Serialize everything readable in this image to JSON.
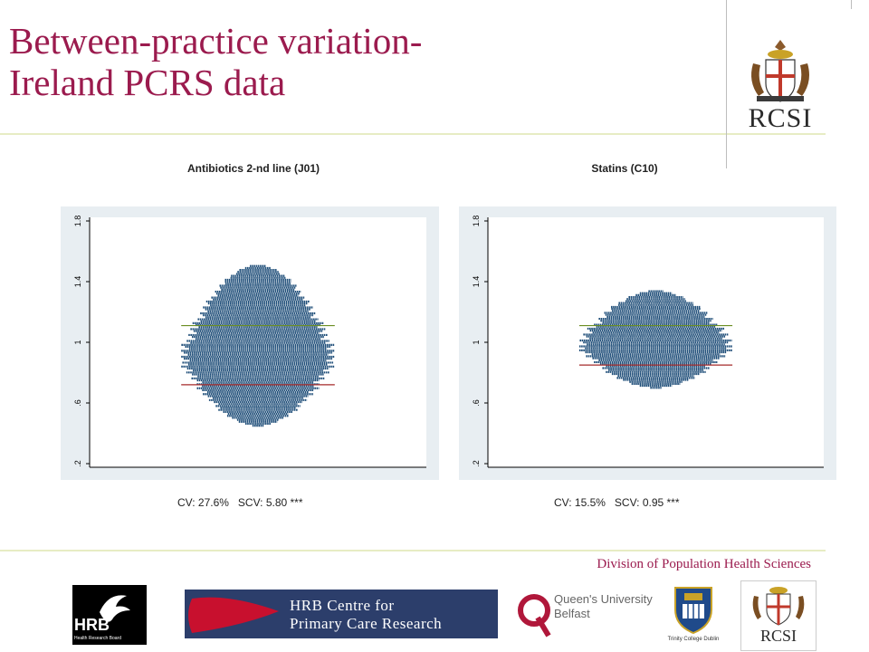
{
  "slide": {
    "title_line1": "Between-practice variation-",
    "title_line2": "Ireland PCRS data",
    "footer_text": "Division of Population Health Sciences",
    "accent_color": "#9b1b4e",
    "line_color": "#e7ecc4"
  },
  "charts": [
    {
      "title": "Antibiotics 2-nd line (J01)",
      "stats": "CV: 27.6%   SCV: 5.80 ***",
      "y_ticks": [
        "1.8",
        "1.4",
        "1",
        ".6",
        ".2"
      ]
    },
    {
      "title": "Statins (C10)",
      "stats": "CV: 15.5%   SCV: 0.95 ***",
      "y_ticks": [
        "1.8",
        "1.4",
        "1",
        ".6",
        ".2"
      ]
    }
  ],
  "chart_data": [
    {
      "type": "scatter",
      "title": "Antibiotics 2-nd line (J01)",
      "ylim": [
        0.2,
        1.8
      ],
      "yticks": [
        0.2,
        0.6,
        1.0,
        1.4,
        1.8
      ],
      "distribution": {
        "min": 0.45,
        "max": 1.51,
        "widest_at": 0.9,
        "half_width_max": 0.95
      },
      "reference_lines": [
        {
          "value": 1.11,
          "color": "#6b8e23"
        },
        {
          "value": 0.72,
          "color": "#a52a2a"
        }
      ],
      "annotation": "CV: 27.6%   SCV: 5.80 ***"
    },
    {
      "type": "scatter",
      "title": "Statins (C10)",
      "ylim": [
        0.2,
        1.8
      ],
      "yticks": [
        0.2,
        0.6,
        1.0,
        1.4,
        1.8
      ],
      "distribution": {
        "min": 0.7,
        "max": 1.34,
        "widest_at": 0.98,
        "half_width_max": 0.95
      },
      "reference_lines": [
        {
          "value": 1.11,
          "color": "#6b8e23"
        },
        {
          "value": 0.85,
          "color": "#a52a2a"
        }
      ],
      "annotation": "CV: 15.5%   SCV: 0.95 ***"
    }
  ],
  "logos": {
    "rcsi_text": "RCSI",
    "hrb_text": "HRB",
    "hrb_sub": "Health Research Board",
    "hrb_centre_line1": "HRB Centre for",
    "hrb_centre_line2": "Primary Care Research",
    "qub_line1": "Queen's University",
    "qub_line2": "Belfast",
    "tcd_text": "Trinity College Dublin"
  }
}
